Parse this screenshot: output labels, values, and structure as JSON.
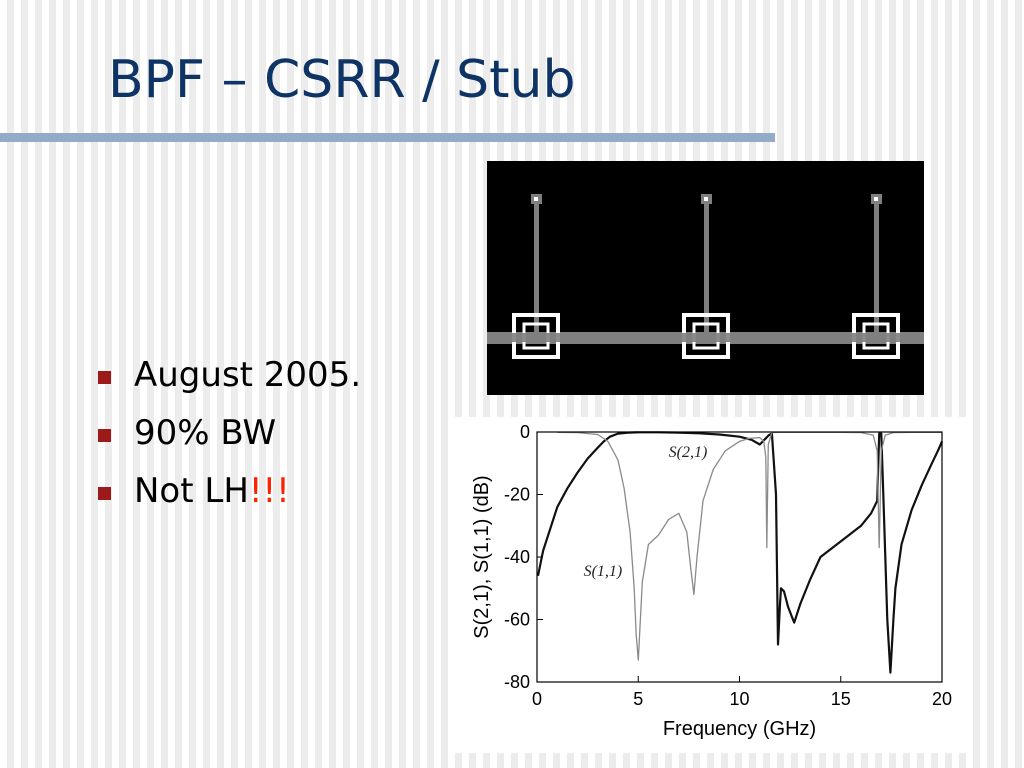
{
  "slide": {
    "title": "BPF – CSRR / Stub",
    "bullets": [
      {
        "text": "August 2005.",
        "accent": ""
      },
      {
        "text": "90% BW",
        "accent": ""
      },
      {
        "text": "Not LH",
        "accent": "!!!"
      }
    ]
  },
  "layout_figure": {
    "stub_count": 3,
    "colors": {
      "background": "#000000",
      "line": "#7f7f7f",
      "ring": "#ffffff"
    }
  },
  "chart_data": {
    "type": "line",
    "title": "",
    "xlabel": "Frequency (GHz)",
    "ylabel": "S(2,1), S(1,1) (dB)",
    "xlim": [
      0,
      20
    ],
    "ylim": [
      -80,
      0
    ],
    "xticks": [
      0,
      5,
      10,
      15,
      20
    ],
    "yticks": [
      0,
      -20,
      -40,
      -60,
      -80
    ],
    "grid": false,
    "legend": "none",
    "annotations": [
      {
        "text": "S(2,1)",
        "x": 6.5,
        "y": -8
      },
      {
        "text": "S(1,1)",
        "x": 2.3,
        "y": -46
      }
    ],
    "series": [
      {
        "name": "S(2,1)",
        "color": "#111111",
        "x": [
          0.05,
          0.3,
          0.7,
          1.0,
          1.5,
          2.0,
          2.5,
          3.0,
          3.3,
          3.6,
          4.0,
          4.5,
          5.0,
          6.0,
          7.0,
          8.0,
          9.0,
          10.0,
          10.6,
          11.0,
          11.3,
          11.45,
          11.6,
          11.8,
          11.9,
          12.0,
          12.05,
          12.2,
          12.4,
          12.7,
          13.0,
          13.5,
          14.0,
          15.0,
          16.0,
          16.5,
          16.8,
          16.9,
          17.0,
          17.1,
          17.3,
          17.45,
          17.6,
          17.7,
          18.0,
          18.5,
          19.0,
          19.5,
          19.8,
          20.0
        ],
        "y": [
          -46,
          -38,
          -30,
          -24,
          -18,
          -13,
          -8.5,
          -5,
          -3,
          -1.5,
          -0.5,
          -0.2,
          -0.1,
          -0.1,
          -0.2,
          -0.4,
          -0.8,
          -1.5,
          -2.5,
          -4,
          -2,
          -1,
          -0.5,
          -20,
          -68,
          -55,
          -50,
          -51,
          -56,
          -61,
          -55,
          -47,
          -40,
          -35,
          -30,
          -26,
          -22,
          -0.5,
          -0.5,
          -20,
          -60,
          -77,
          -60,
          -50,
          -36,
          -25,
          -17,
          -10,
          -6,
          -3
        ]
      },
      {
        "name": "S(1,1)",
        "color": "#8a8a8a",
        "x": [
          1.0,
          2.0,
          3.0,
          3.5,
          4.0,
          4.3,
          4.6,
          4.8,
          4.9,
          5.0,
          5.2,
          5.5,
          6.0,
          6.5,
          7.0,
          7.4,
          7.6,
          7.75,
          7.9,
          8.2,
          8.7,
          9.3,
          10.0,
          10.5,
          11.0,
          11.2,
          11.3,
          11.35,
          11.42,
          11.6,
          12.0,
          13.0,
          14.0,
          15.0,
          16.0,
          16.6,
          16.8,
          16.9,
          17.0,
          17.2,
          17.6,
          18.5,
          20.0
        ],
        "y": [
          -0.1,
          -0.2,
          -0.8,
          -3,
          -9,
          -18,
          -32,
          -50,
          -65,
          -73,
          -48,
          -36,
          -33,
          -28,
          -26,
          -32,
          -44,
          -52,
          -40,
          -22,
          -12,
          -6,
          -3,
          -2,
          -1.8,
          -3,
          -8,
          -37,
          -4,
          -0.2,
          -0.1,
          -0.1,
          -0.1,
          -0.1,
          -0.2,
          -1,
          -6,
          -37,
          -6,
          -1,
          -0.2,
          -0.1,
          -0.1
        ]
      }
    ]
  }
}
